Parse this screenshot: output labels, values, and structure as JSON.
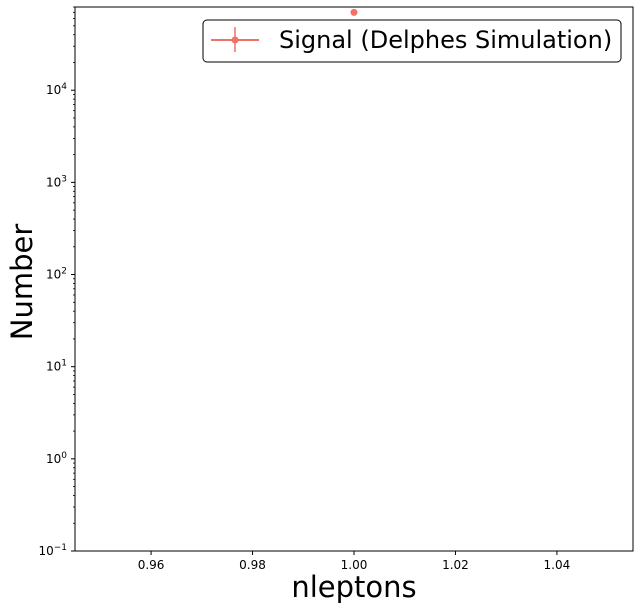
{
  "chart_data": {
    "type": "scatter",
    "title": "",
    "xlabel": "nleptons",
    "ylabel": "Number",
    "xscale": "linear",
    "yscale": "log",
    "xlim": [
      0.945,
      1.055
    ],
    "ylim": [
      0.1,
      80000
    ],
    "x_ticks": [
      0.96,
      0.98,
      1.0,
      1.02,
      1.04
    ],
    "x_tick_labels": [
      "0.96",
      "0.98",
      "1.00",
      "1.02",
      "1.04"
    ],
    "y_tick_exponents": [
      -1,
      0,
      1,
      2,
      3,
      4
    ],
    "grid": false,
    "legend_position": "top-right",
    "series": [
      {
        "name": "Signal (Delphes Simulation)",
        "color": "#f07167",
        "marker": "circle",
        "points": [
          {
            "x": 1.0,
            "y": 70000
          }
        ]
      }
    ]
  }
}
